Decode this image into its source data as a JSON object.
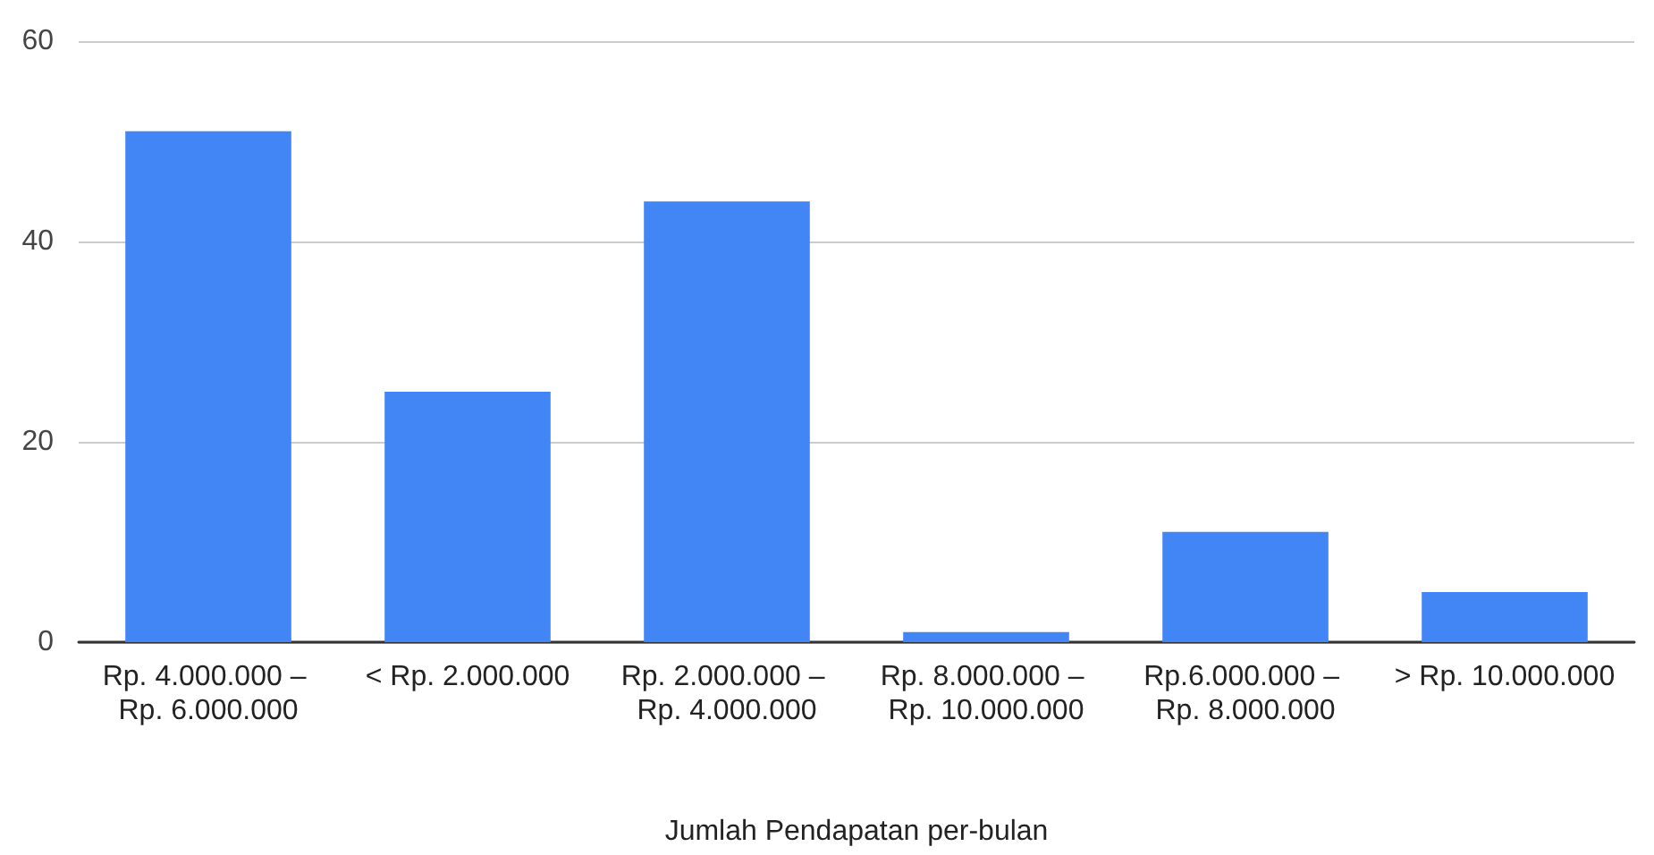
{
  "chart_data": {
    "type": "bar",
    "xlabel": "Jumlah Pendapatan per-bulan",
    "categories": [
      "Rp. 4.000.000 – Rp. 6.000.000",
      "< Rp. 2.000.000",
      "Rp. 2.000.000 – Rp. 4.000.000",
      "Rp. 8.000.000 – Rp. 10.000.000",
      "Rp.6.000.000 – Rp. 8.000.000",
      "> Rp. 10.000.000"
    ],
    "values": [
      51,
      25,
      44,
      1,
      11,
      5
    ],
    "color": "#4285f4",
    "ylim": [
      0,
      60
    ],
    "yticks": [
      0,
      20,
      40,
      60
    ],
    "grid": "y"
  }
}
